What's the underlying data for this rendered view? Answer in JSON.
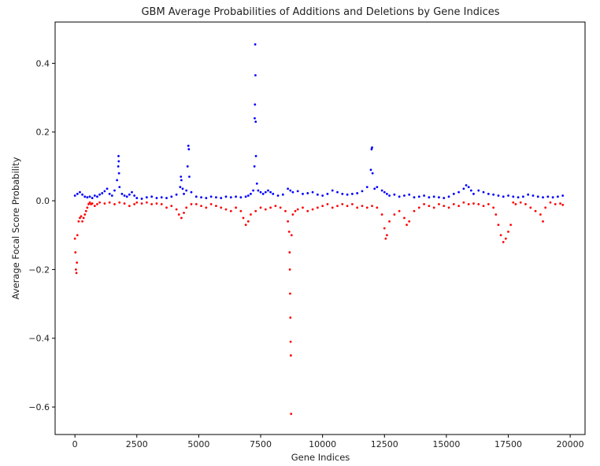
{
  "chart_data": {
    "type": "scatter",
    "title": "GBM Average Probabilities of Additions and Deletions by Gene Indices",
    "xlabel": "Gene Indices",
    "ylabel": "Average Focal Score Probability",
    "xlim": [
      -800,
      20600
    ],
    "ylim": [
      -0.68,
      0.52
    ],
    "xticks": [
      0,
      2500,
      5000,
      7500,
      10000,
      12500,
      15000,
      17500,
      20000
    ],
    "xtick_labels": [
      "0",
      "2500",
      "5000",
      "7500",
      "10000",
      "12500",
      "15000",
      "17500",
      "20000"
    ],
    "yticks": [
      -0.6,
      -0.4,
      -0.2,
      0.0,
      0.2,
      0.4
    ],
    "ytick_labels": [
      "−0.6",
      "−0.4",
      "−0.2",
      "0.0",
      "0.2",
      "0.4"
    ],
    "grid": false,
    "legend": "none",
    "series": [
      {
        "color": "#0000ff",
        "x": [
          0,
          100,
          200,
          300,
          400,
          500,
          600,
          700,
          800,
          900,
          1000,
          1100,
          1200,
          1300,
          1400,
          1500,
          1600,
          1700,
          1750,
          1760,
          1770,
          1780,
          1800,
          1900,
          2000,
          2100,
          2200,
          2300,
          2400,
          2500,
          2700,
          2900,
          3100,
          3300,
          3500,
          3700,
          3900,
          4100,
          4250,
          4280,
          4300,
          4350,
          4400,
          4500,
          4550,
          4580,
          4600,
          4620,
          4700,
          4900,
          5100,
          5300,
          5500,
          5700,
          5900,
          6100,
          6300,
          6500,
          6700,
          6900,
          7000,
          7100,
          7200,
          7250,
          7260,
          7270,
          7280,
          7290,
          7300,
          7310,
          7350,
          7400,
          7500,
          7600,
          7700,
          7800,
          7900,
          8000,
          8200,
          8400,
          8600,
          8700,
          8800,
          9000,
          9200,
          9400,
          9600,
          9800,
          10000,
          10200,
          10400,
          10600,
          10800,
          11000,
          11200,
          11400,
          11600,
          11800,
          11950,
          11980,
          12000,
          12020,
          12100,
          12200,
          12400,
          12500,
          12600,
          12700,
          12900,
          13100,
          13300,
          13500,
          13700,
          13900,
          14100,
          14300,
          14500,
          14700,
          14900,
          15100,
          15300,
          15500,
          15700,
          15800,
          15900,
          16000,
          16100,
          16300,
          16500,
          16700,
          16900,
          17100,
          17300,
          17500,
          17700,
          17900,
          18100,
          18300,
          18500,
          18700,
          18900,
          19100,
          19300,
          19500,
          19700
        ],
        "y": [
          0.015,
          0.02,
          0.025,
          0.018,
          0.012,
          0.01,
          0.012,
          0.008,
          0.015,
          0.012,
          0.018,
          0.022,
          0.028,
          0.035,
          0.02,
          0.015,
          0.03,
          0.06,
          0.1,
          0.13,
          0.115,
          0.08,
          0.04,
          0.02,
          0.015,
          0.012,
          0.018,
          0.025,
          0.015,
          0.008,
          0.006,
          0.01,
          0.012,
          0.008,
          0.01,
          0.008,
          0.012,
          0.018,
          0.04,
          0.07,
          0.06,
          0.035,
          0.02,
          0.03,
          0.1,
          0.16,
          0.15,
          0.07,
          0.025,
          0.012,
          0.01,
          0.008,
          0.012,
          0.01,
          0.008,
          0.012,
          0.01,
          0.012,
          0.01,
          0.012,
          0.015,
          0.02,
          0.03,
          0.1,
          0.24,
          0.28,
          0.455,
          0.365,
          0.23,
          0.13,
          0.05,
          0.03,
          0.025,
          0.02,
          0.025,
          0.03,
          0.025,
          0.02,
          0.015,
          0.018,
          0.035,
          0.03,
          0.025,
          0.028,
          0.02,
          0.022,
          0.025,
          0.018,
          0.015,
          0.02,
          0.03,
          0.025,
          0.02,
          0.018,
          0.02,
          0.022,
          0.028,
          0.04,
          0.09,
          0.15,
          0.155,
          0.08,
          0.035,
          0.04,
          0.03,
          0.025,
          0.02,
          0.015,
          0.018,
          0.012,
          0.015,
          0.018,
          0.01,
          0.012,
          0.015,
          0.01,
          0.012,
          0.01,
          0.008,
          0.012,
          0.02,
          0.025,
          0.035,
          0.045,
          0.04,
          0.03,
          0.02,
          0.03,
          0.025,
          0.02,
          0.018,
          0.015,
          0.012,
          0.015,
          0.012,
          0.01,
          0.012,
          0.018,
          0.015,
          0.012,
          0.01,
          0.012,
          0.01,
          0.012,
          0.015
        ]
      },
      {
        "color": "#ff0000",
        "x": [
          0,
          20,
          40,
          60,
          80,
          100,
          150,
          200,
          250,
          300,
          350,
          400,
          450,
          500,
          550,
          600,
          650,
          700,
          800,
          900,
          1000,
          1200,
          1400,
          1600,
          1800,
          2000,
          2200,
          2400,
          2500,
          2700,
          2900,
          3100,
          3300,
          3500,
          3700,
          3900,
          4100,
          4200,
          4300,
          4400,
          4500,
          4700,
          4900,
          5100,
          5300,
          5500,
          5700,
          5900,
          6100,
          6300,
          6500,
          6700,
          6800,
          6900,
          7000,
          7100,
          7300,
          7500,
          7700,
          7900,
          8100,
          8300,
          8500,
          8600,
          8650,
          8670,
          8680,
          8690,
          8700,
          8710,
          8720,
          8730,
          8750,
          8800,
          8900,
          9000,
          9200,
          9400,
          9600,
          9800,
          10000,
          10200,
          10400,
          10600,
          10800,
          11000,
          11200,
          11400,
          11600,
          11800,
          12000,
          12200,
          12400,
          12500,
          12550,
          12600,
          12700,
          12900,
          13100,
          13300,
          13400,
          13500,
          13700,
          13900,
          14100,
          14300,
          14500,
          14700,
          14900,
          15100,
          15300,
          15500,
          15700,
          15900,
          16100,
          16300,
          16500,
          16700,
          16900,
          17000,
          17100,
          17200,
          17300,
          17400,
          17500,
          17600,
          17700,
          17800,
          18000,
          18200,
          18400,
          18600,
          18800,
          18900,
          19000,
          19200,
          19400,
          19600,
          19700
        ],
        "y": [
          -0.11,
          -0.15,
          -0.2,
          -0.21,
          -0.18,
          -0.1,
          -0.06,
          -0.05,
          -0.045,
          -0.06,
          -0.05,
          -0.04,
          -0.03,
          -0.02,
          -0.01,
          -0.005,
          -0.01,
          -0.008,
          -0.015,
          -0.01,
          -0.005,
          -0.008,
          -0.005,
          -0.01,
          -0.005,
          -0.008,
          -0.015,
          -0.01,
          -0.005,
          -0.008,
          -0.005,
          -0.01,
          -0.008,
          -0.01,
          -0.02,
          -0.015,
          -0.025,
          -0.04,
          -0.05,
          -0.035,
          -0.02,
          -0.01,
          -0.01,
          -0.015,
          -0.02,
          -0.01,
          -0.015,
          -0.02,
          -0.025,
          -0.03,
          -0.02,
          -0.03,
          -0.05,
          -0.07,
          -0.06,
          -0.04,
          -0.03,
          -0.02,
          -0.025,
          -0.02,
          -0.015,
          -0.02,
          -0.03,
          -0.06,
          -0.09,
          -0.15,
          -0.2,
          -0.27,
          -0.34,
          -0.41,
          -0.45,
          -0.62,
          -0.1,
          -0.04,
          -0.03,
          -0.025,
          -0.02,
          -0.03,
          -0.025,
          -0.02,
          -0.015,
          -0.01,
          -0.02,
          -0.015,
          -0.01,
          -0.015,
          -0.01,
          -0.02,
          -0.015,
          -0.02,
          -0.015,
          -0.02,
          -0.04,
          -0.08,
          -0.11,
          -0.1,
          -0.06,
          -0.04,
          -0.03,
          -0.05,
          -0.07,
          -0.06,
          -0.03,
          -0.02,
          -0.01,
          -0.015,
          -0.02,
          -0.01,
          -0.015,
          -0.02,
          -0.01,
          -0.015,
          -0.005,
          -0.01,
          -0.008,
          -0.01,
          -0.015,
          -0.01,
          -0.02,
          -0.04,
          -0.07,
          -0.1,
          -0.12,
          -0.11,
          -0.09,
          -0.07,
          -0.005,
          -0.01,
          -0.005,
          -0.01,
          -0.02,
          -0.03,
          -0.04,
          -0.06,
          -0.02,
          -0.005,
          -0.01,
          -0.008,
          -0.012
        ]
      }
    ]
  }
}
